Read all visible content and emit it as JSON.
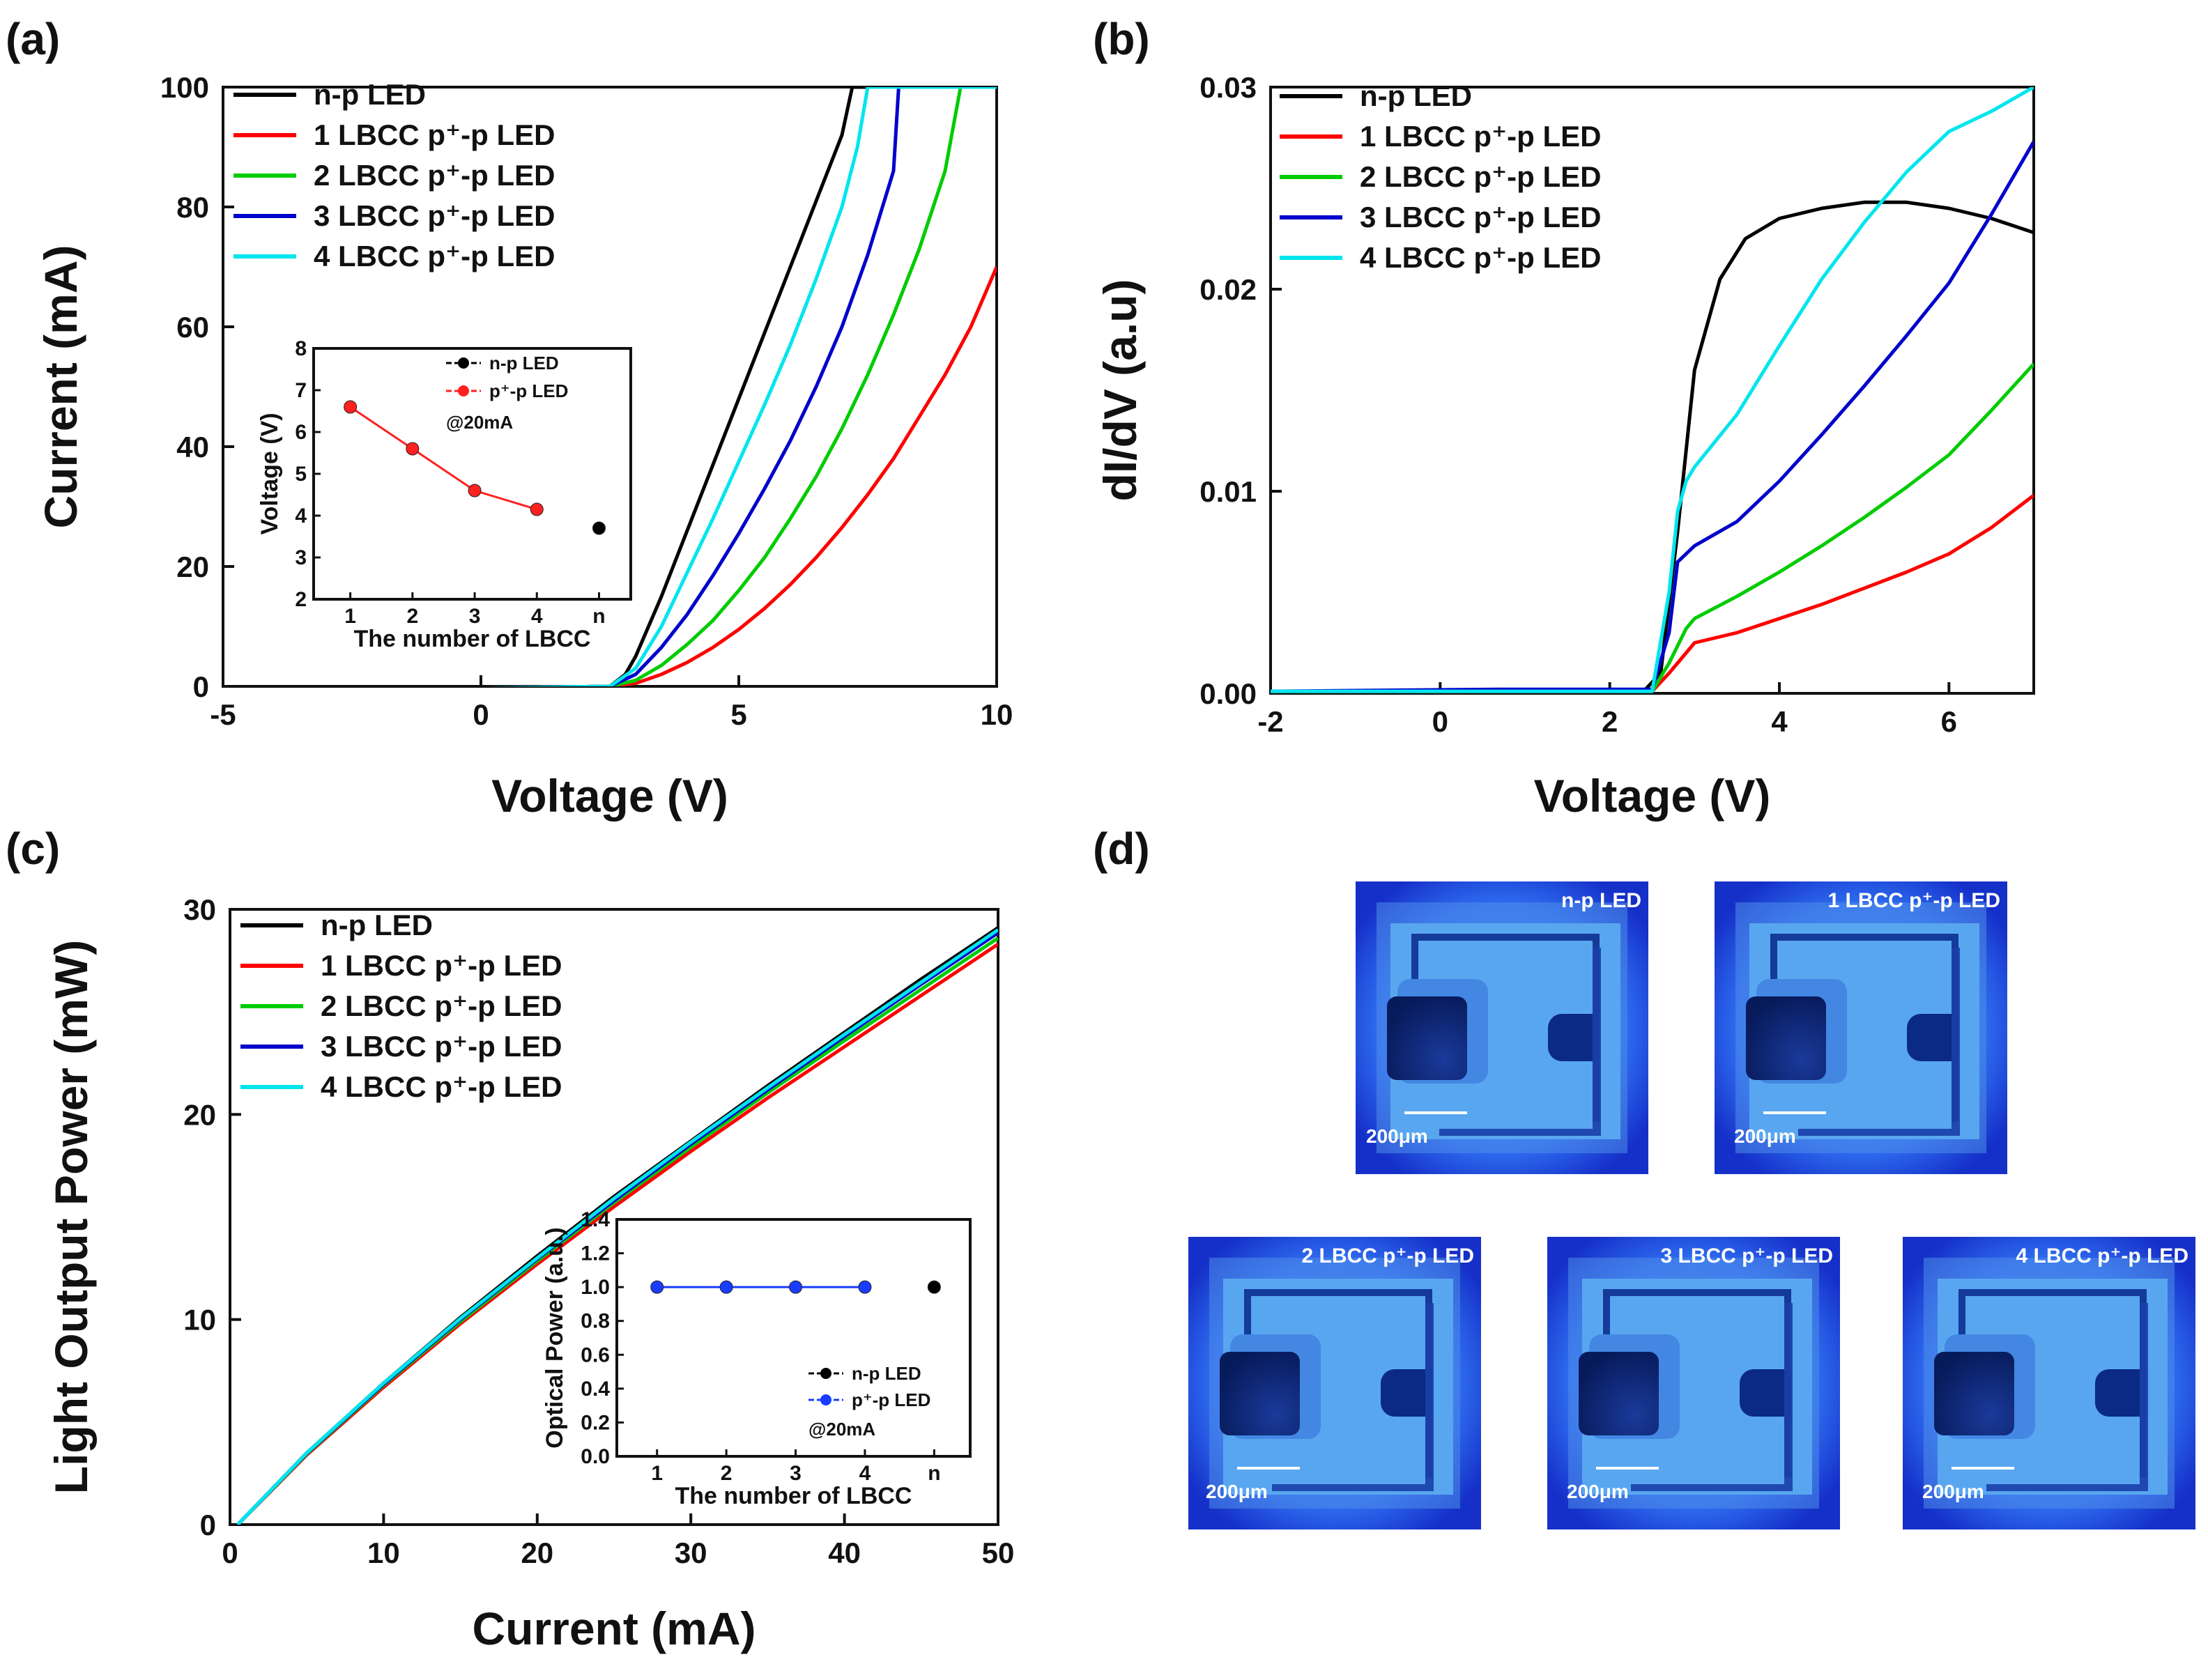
{
  "panels": {
    "a": {
      "label": "(a)",
      "chart_data": {
        "type": "line",
        "xlabel": "Voltage (V)",
        "ylabel": "Current (mA)",
        "xlim": [
          -5,
          10
        ],
        "ylim": [
          0,
          100
        ],
        "xticks": [
          "-5",
          "0",
          "5",
          "10"
        ],
        "yticks": [
          "0",
          "20",
          "40",
          "60",
          "80",
          "100"
        ],
        "legend_position": "top-left",
        "series": [
          {
            "name": "n-p LED",
            "color": "#000000",
            "x": [
              -5,
              0,
              2.5,
              2.8,
              3.0,
              3.5,
              4.0,
              4.5,
              5.0,
              5.5,
              6.0,
              6.5,
              7.0,
              7.2,
              7.5
            ],
            "y": [
              -0.8,
              -0.3,
              0,
              2,
              5,
              15,
              26,
              37,
              48,
              59,
              70,
              81,
              92,
              100,
              100
            ]
          },
          {
            "name": "1 LBCC p⁺-p LED",
            "color": "#ff0000",
            "x": [
              -5,
              0,
              2.5,
              3.0,
              3.5,
              4.0,
              4.5,
              5.0,
              5.5,
              6.0,
              6.5,
              7.0,
              7.5,
              8.0,
              8.5,
              9.0,
              9.5,
              10.0
            ],
            "y": [
              -0.8,
              -0.3,
              0,
              0.5,
              2,
              4,
              6.5,
              9.5,
              13,
              17,
              21.5,
              26.5,
              32,
              38,
              45,
              52,
              60,
              70
            ]
          },
          {
            "name": "2 LBCC p⁺-p LED",
            "color": "#00cc00",
            "x": [
              -5,
              0,
              2.5,
              3.0,
              3.5,
              4.0,
              4.5,
              5.0,
              5.5,
              6.0,
              6.5,
              7.0,
              7.5,
              8.0,
              8.5,
              9.0,
              9.3,
              10.0
            ],
            "y": [
              -0.8,
              -0.3,
              0,
              1,
              3.5,
              7,
              11,
              16,
              21.5,
              28,
              35,
              43,
              52,
              62,
              73,
              86,
              100,
              100
            ]
          },
          {
            "name": "3 LBCC p⁺-p LED",
            "color": "#0000cc",
            "x": [
              -5,
              0,
              2.5,
              3.0,
              3.5,
              4.0,
              4.5,
              5.0,
              5.5,
              6.0,
              6.5,
              7.0,
              7.5,
              8.0,
              8.1,
              10.0
            ],
            "y": [
              -0.8,
              -0.3,
              0,
              2,
              6.5,
              12,
              18.5,
              25.5,
              33,
              41,
              50,
              60,
              72,
              86,
              100,
              100
            ]
          },
          {
            "name": "4 LBCC p⁺-p LED",
            "color": "#00e5ee",
            "x": [
              -5,
              0,
              2.5,
              3.0,
              3.5,
              4.0,
              4.5,
              5.0,
              5.5,
              6.0,
              6.5,
              7.0,
              7.3,
              7.5,
              10.0
            ],
            "y": [
              -0.8,
              -0.3,
              0,
              3,
              10,
              19,
              28,
              37.5,
              47,
              57,
              68,
              80,
              90,
              100,
              100
            ]
          }
        ],
        "inset": {
          "xlabel": "The number of LBCC",
          "ylabel": "Voltage (V)",
          "categories": [
            "1",
            "2",
            "3",
            "4",
            "n"
          ],
          "yticks": [
            "2",
            "3",
            "4",
            "5",
            "6",
            "7",
            "8"
          ],
          "ylim": [
            2,
            8
          ],
          "legend": [
            "n-p LED",
            "p⁺-p LED"
          ],
          "annotation": "@20mA",
          "series": [
            {
              "name": "p⁺-p LED",
              "color": "#ff2020",
              "x": [
                1,
                2,
                3,
                4
              ],
              "y": [
                6.6,
                5.6,
                4.6,
                4.15
              ]
            },
            {
              "name": "n-p LED",
              "color": "#000000",
              "x": [
                5
              ],
              "y": [
                3.7
              ]
            }
          ]
        }
      }
    },
    "b": {
      "label": "(b)",
      "chart_data": {
        "type": "line",
        "xlabel": "Voltage (V)",
        "ylabel": "dI/dV (a.u)",
        "xlim": [
          -2,
          7
        ],
        "ylim": [
          0,
          0.03
        ],
        "xticks": [
          "-2",
          "0",
          "2",
          "4",
          "6"
        ],
        "yticks": [
          "0.00",
          "0.01",
          "0.02",
          "0.03"
        ],
        "legend_position": "top-left",
        "series": [
          {
            "name": "n-p LED",
            "color": "#000000",
            "x": [
              -2,
              2.4,
              2.6,
              2.8,
              3.0,
              3.3,
              3.6,
              4.0,
              4.5,
              5.0,
              5.5,
              6.0,
              6.5,
              7.0
            ],
            "y": [
              0.0001,
              0.0001,
              0.001,
              0.008,
              0.016,
              0.0205,
              0.0225,
              0.0235,
              0.024,
              0.0243,
              0.0243,
              0.024,
              0.0235,
              0.0228
            ]
          },
          {
            "name": "1 LBCC p⁺-p LED",
            "color": "#ff0000",
            "x": [
              -2,
              2.5,
              2.7,
              2.9,
              3.0,
              3.5,
              4.0,
              4.5,
              5.0,
              5.5,
              6.0,
              6.5,
              7.0
            ],
            "y": [
              0.0001,
              0.0001,
              0.001,
              0.002,
              0.0025,
              0.003,
              0.0037,
              0.0044,
              0.0052,
              0.006,
              0.0069,
              0.0082,
              0.0098
            ]
          },
          {
            "name": "2 LBCC p⁺-p LED",
            "color": "#00cc00",
            "x": [
              -2,
              2.5,
              2.7,
              2.9,
              3.0,
              3.5,
              4.0,
              4.5,
              5.0,
              5.5,
              6.0,
              6.5,
              7.0
            ],
            "y": [
              0.0001,
              0.0001,
              0.0015,
              0.0032,
              0.0037,
              0.0048,
              0.006,
              0.0073,
              0.0087,
              0.0102,
              0.0118,
              0.014,
              0.0163
            ]
          },
          {
            "name": "3 LBCC p⁺-p LED",
            "color": "#0000cc",
            "x": [
              -2,
              0.7,
              1.7,
              2.5,
              2.7,
              2.8,
              3.0,
              3.5,
              4.0,
              4.5,
              5.0,
              5.5,
              6.0,
              6.5,
              7.0
            ],
            "y": [
              0.0001,
              0.0002,
              0.0002,
              0.0002,
              0.003,
              0.0065,
              0.0073,
              0.0085,
              0.0105,
              0.0128,
              0.0152,
              0.0177,
              0.0203,
              0.0237,
              0.0273
            ]
          },
          {
            "name": "4 LBCC p⁺-p LED",
            "color": "#00e5ee",
            "x": [
              -2,
              2.5,
              2.7,
              2.8,
              2.9,
              3.0,
              3.5,
              4.0,
              4.5,
              5.0,
              5.5,
              6.0,
              6.5,
              7.0
            ],
            "y": [
              0.0001,
              0.0001,
              0.005,
              0.009,
              0.0105,
              0.0112,
              0.0138,
              0.0172,
              0.0205,
              0.0233,
              0.0258,
              0.0278,
              0.0288,
              0.03
            ]
          }
        ]
      }
    },
    "c": {
      "label": "(c)",
      "chart_data": {
        "type": "line",
        "xlabel": "Current (mA)",
        "ylabel": "Light Output Power (mW)",
        "xlim": [
          0,
          50
        ],
        "ylim": [
          0,
          30
        ],
        "xticks": [
          "0",
          "10",
          "20",
          "30",
          "40",
          "50"
        ],
        "yticks": [
          "0",
          "10",
          "20",
          "30"
        ],
        "legend_position": "top-left",
        "series": [
          {
            "name": "n-p LED",
            "color": "#000000",
            "x": [
              0.5,
              5,
              10,
              15,
              20,
              25,
              30,
              35,
              40,
              45,
              50
            ],
            "y": [
              0,
              3.5,
              6.9,
              10.1,
              13.1,
              16.0,
              18.7,
              21.4,
              24.0,
              26.6,
              29.1
            ]
          },
          {
            "name": "1 LBCC p⁺-p LED",
            "color": "#ff0000",
            "x": [
              0.5,
              5,
              10,
              15,
              20,
              25,
              30,
              35,
              40,
              45,
              50
            ],
            "y": [
              0,
              3.4,
              6.7,
              9.8,
              12.7,
              15.5,
              18.2,
              20.8,
              23.3,
              25.8,
              28.3
            ]
          },
          {
            "name": "2 LBCC p⁺-p LED",
            "color": "#00cc00",
            "x": [
              0.5,
              5,
              10,
              15,
              20,
              25,
              30,
              35,
              40,
              45,
              50
            ],
            "y": [
              0,
              3.45,
              6.8,
              9.9,
              12.85,
              15.7,
              18.4,
              21.05,
              23.6,
              26.1,
              28.6
            ]
          },
          {
            "name": "3 LBCC p⁺-p LED",
            "color": "#0000cc",
            "x": [
              0.5,
              5,
              10,
              15,
              20,
              25,
              30,
              35,
              40,
              45,
              50
            ],
            "y": [
              0,
              3.48,
              6.85,
              10.0,
              12.95,
              15.8,
              18.55,
              21.2,
              23.8,
              26.35,
              28.85
            ]
          },
          {
            "name": "4 LBCC p⁺-p LED",
            "color": "#00e5ee",
            "x": [
              0.5,
              5,
              10,
              15,
              20,
              25,
              30,
              35,
              40,
              45,
              50
            ],
            "y": [
              0,
              3.5,
              6.9,
              10.05,
              13.0,
              15.9,
              18.65,
              21.3,
              23.9,
              26.45,
              29.0
            ]
          }
        ],
        "inset": {
          "xlabel": "The number of LBCC",
          "ylabel": "Optical Power (a.u.)",
          "categories": [
            "1",
            "2",
            "3",
            "4",
            "n"
          ],
          "yticks": [
            "0.0",
            "0.2",
            "0.4",
            "0.6",
            "0.8",
            "1.0",
            "1.2",
            "1.4"
          ],
          "ylim": [
            0,
            1.4
          ],
          "legend": [
            "n-p LED",
            "p⁺-p LED"
          ],
          "annotation": "@20mA",
          "series": [
            {
              "name": "p⁺-p LED",
              "color": "#1a3cff",
              "x": [
                1,
                2,
                3,
                4
              ],
              "y": [
                1.0,
                1.0,
                1.0,
                1.0
              ]
            },
            {
              "name": "n-p LED",
              "color": "#000000",
              "x": [
                5
              ],
              "y": [
                1.0
              ]
            }
          ]
        }
      }
    },
    "d": {
      "label": "(d)",
      "images": [
        {
          "label": "n-p LED",
          "scale": "200μm"
        },
        {
          "label": "1 LBCC p⁺-p LED",
          "scale": "200μm"
        },
        {
          "label": "2 LBCC p⁺-p LED",
          "scale": "200μm"
        },
        {
          "label": "3 LBCC p⁺-p LED",
          "scale": "200μm"
        },
        {
          "label": "4 LBCC p⁺-p LED",
          "scale": "200μm"
        }
      ]
    }
  }
}
